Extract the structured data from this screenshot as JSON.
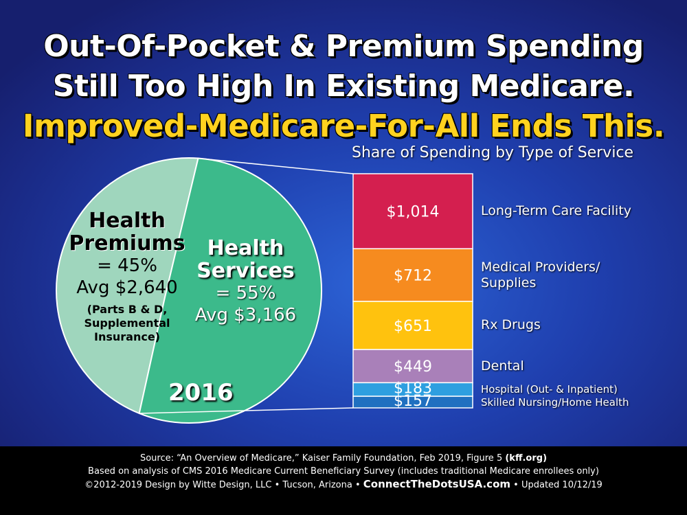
{
  "headline": {
    "line1": "Out-Of-Pocket & Premium Spending",
    "line2": "Still Too High In Existing Medicare.",
    "line3": "Improved-Medicare-For-All Ends This."
  },
  "breakdown_title": "Share of Spending by Type of Service",
  "pie": {
    "premiums": {
      "title_line1": "Health",
      "title_line2": "Premiums",
      "pct": "= 45%",
      "avg": "Avg $2,640",
      "note": "(Parts B & D,\nSupplemental\nInsurance)"
    },
    "services": {
      "title_line1": "Health",
      "title_line2": "Services",
      "pct": "= 55%",
      "avg": "Avg $3,166"
    },
    "year": "2016"
  },
  "footer": {
    "line1": "Source: “An Overview of Medicare,” Kaiser Family Foundation, Feb 2019, Figure 5",
    "line1_bold": "(kff.org)",
    "line2": "Based on analysis of  CMS 2016 Medicare Current Beneficiary Survey (includes traditional Medicare enrollees only)",
    "line3_pre": "©2012-2019 Design by Witte Design, LLC • Tucson, Arizona •",
    "line3_url": "ConnectTheDotsUSA.com",
    "line3_post": "• Updated 10/12/19"
  },
  "colors": {
    "premiums": "#9fd6bd",
    "services": "#3cba8b",
    "long_term_care": "#d41f4f",
    "medical_providers": "#f68b1f",
    "rx_drugs": "#ffc20e",
    "dental": "#a980b9",
    "hospital": "#2e9fe0",
    "skilled_nursing": "#2070c0"
  },
  "chart_data": [
    {
      "type": "pie",
      "slices": [
        {
          "label": "Health Premiums",
          "value": 45,
          "avg": 2640
        },
        {
          "label": "Health Services",
          "value": 55,
          "avg": 3166
        }
      ],
      "annotation": "2016"
    },
    {
      "type": "bar",
      "title": "Share of Spending by Type of Service",
      "stacked": true,
      "categories": [
        "Long-Term Care Facility",
        "Medical Providers/\nSupplies",
        "Rx Drugs",
        "Dental",
        "Hospital (Out- & Inpatient)",
        "Skilled Nursing/Home Health"
      ],
      "values": [
        1014,
        712,
        651,
        449,
        183,
        157
      ],
      "value_labels": [
        "$1,014",
        "$712",
        "$651",
        "$449",
        "$183",
        "$157"
      ]
    }
  ]
}
